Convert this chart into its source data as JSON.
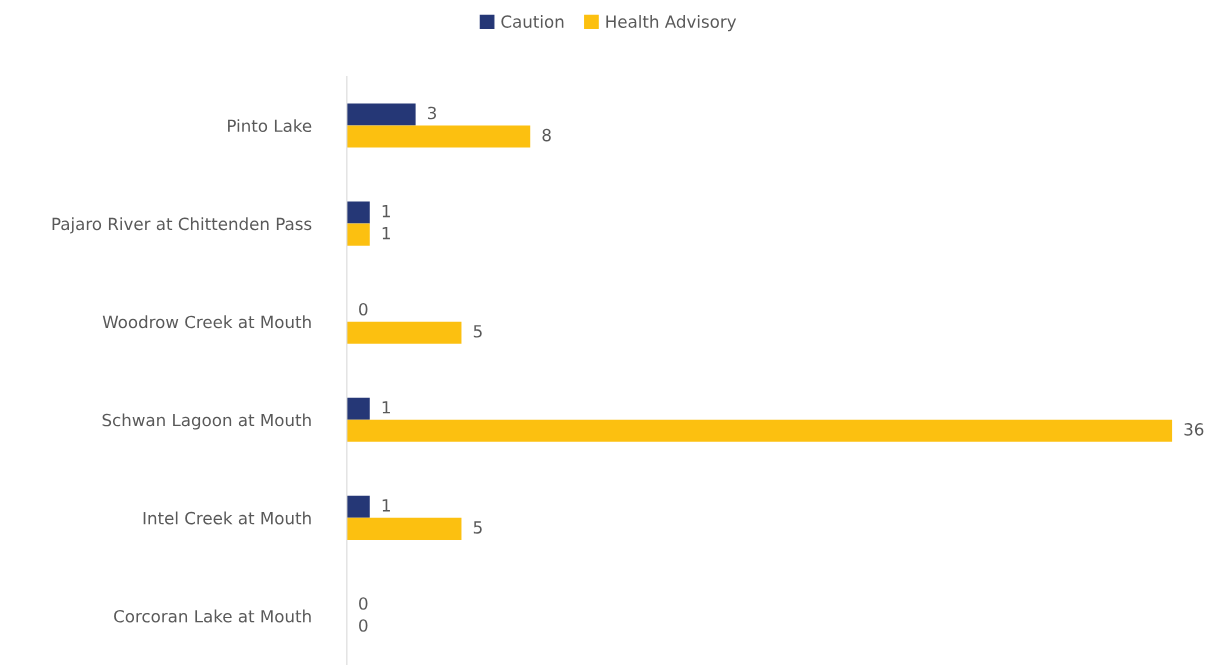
{
  "chart_data": {
    "type": "bar",
    "orientation": "horizontal",
    "categories": [
      "Pinto Lake",
      "Pajaro River at Chittenden Pass",
      "Woodrow Creek at Mouth",
      "Schwan Lagoon at Mouth",
      "Intel Creek at Mouth",
      "Corcoran Lake at Mouth"
    ],
    "series": [
      {
        "name": "Caution",
        "color": "#253776",
        "values": [
          3,
          1,
          0,
          1,
          1,
          0
        ]
      },
      {
        "name": "Health Advisory",
        "color": "#fcc010",
        "values": [
          8,
          1,
          5,
          36,
          5,
          0
        ]
      }
    ],
    "tick_labels": "y",
    "data_labels": true,
    "legend": "top",
    "grid": false
  }
}
